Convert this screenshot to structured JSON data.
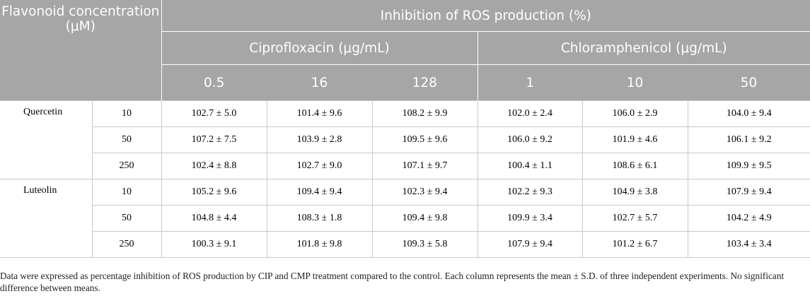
{
  "table": {
    "header": {
      "row_label": "Flavonoid concentration (μM)",
      "main": "Inhibition of ROS production (%)",
      "groups": [
        {
          "label": "Ciprofloxacin (μg/mL)",
          "columns": [
            "0.5",
            "16",
            "128"
          ]
        },
        {
          "label": "Chloramphenicol (μg/mL)",
          "columns": [
            "1",
            "10",
            "50"
          ]
        }
      ]
    },
    "rows": [
      {
        "flavonoid": "Quercetin",
        "conc": "10",
        "values": [
          "102.7 ± 5.0",
          "101.4 ± 9.6",
          "108.2 ± 9.9",
          "102.0 ± 2.4",
          "106.0 ± 2.9",
          "104.0 ± 9.4"
        ]
      },
      {
        "flavonoid": "Quercetin",
        "conc": "50",
        "values": [
          "107.2 ± 7.5",
          "103.9 ± 2.8",
          "109.5 ± 9.6",
          "106.0 ± 9.2",
          "101.9 ± 4.6",
          "106.1 ± 9.2"
        ]
      },
      {
        "flavonoid": "Quercetin",
        "conc": "250",
        "values": [
          "102.4 ± 8.8",
          "102.7 ± 9.0",
          "107.1 ± 9.7",
          "100.4 ± 1.1",
          "108.6 ± 6.1",
          "109.9 ± 9.5"
        ]
      },
      {
        "flavonoid": "Luteolin",
        "conc": "10",
        "values": [
          "105.2 ± 9.6",
          "109.4 ± 9.4",
          "102.3 ± 9.4",
          "102.2 ± 9.3",
          "104.9 ± 3.8",
          "107.9 ± 9.4"
        ]
      },
      {
        "flavonoid": "Luteolin",
        "conc": "50",
        "values": [
          "104.8 ± 4.4",
          "108.3 ± 1.8",
          "109.4 ± 9.8",
          "109.9 ± 3.4",
          "102.7 ± 5.7",
          "104.2 ± 4.9"
        ]
      },
      {
        "flavonoid": "Luteolin",
        "conc": "250",
        "values": [
          "100.3 ± 9.1",
          "101.8 ± 9.8",
          "109.3 ± 5.8",
          "107.9 ± 9.4",
          "101.2 ± 6.7",
          "103.4 ± 3.4"
        ]
      }
    ],
    "footnote": "Data were expressed as percentage inhibition of ROS production by CIP and CMP treatment compared to the control. Each column represents the mean ± S.D. of three independent experiments. No significant difference between means."
  }
}
